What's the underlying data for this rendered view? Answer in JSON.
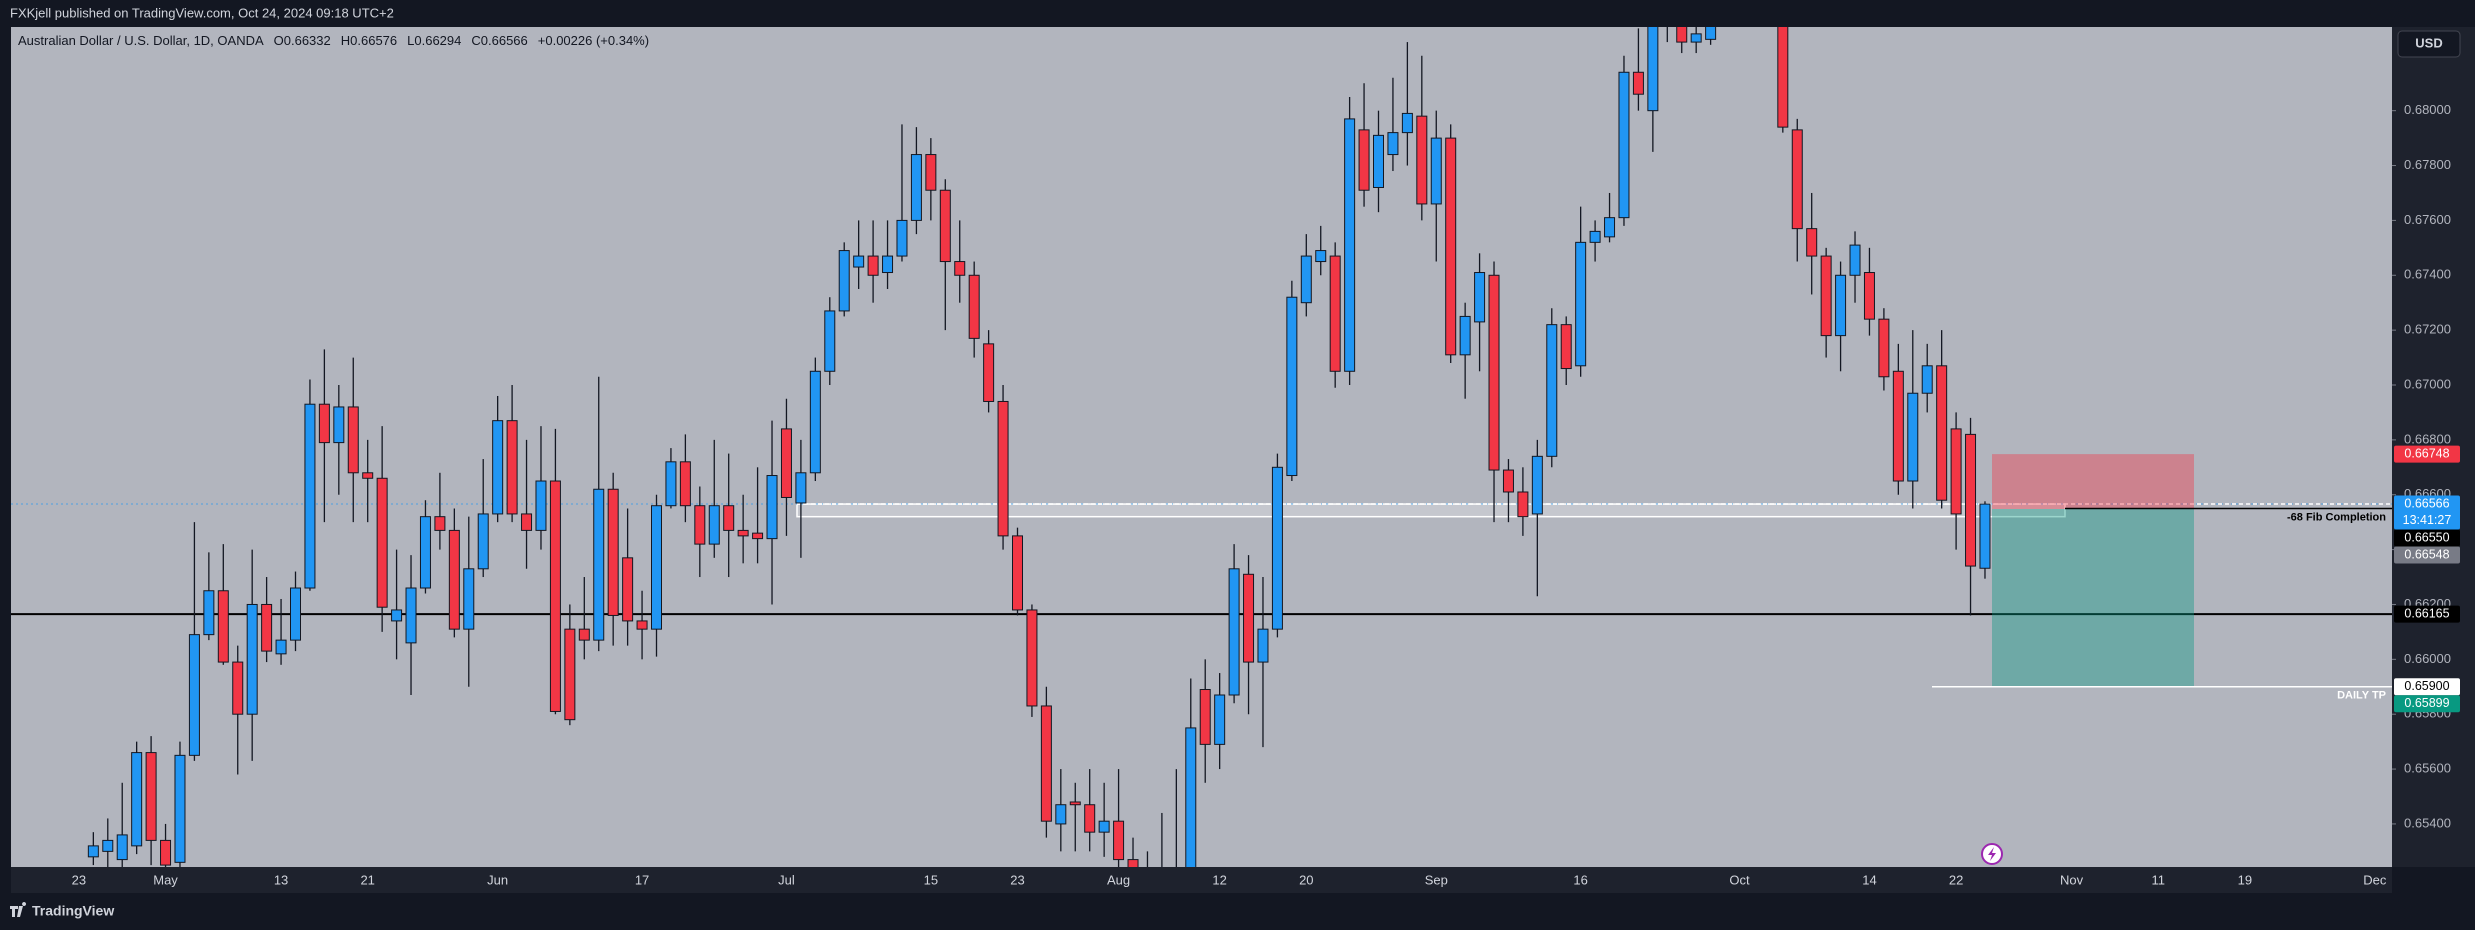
{
  "header": {
    "text": "FXKjell published on TradingView.com, Oct 24, 2024 09:18 UTC+2"
  },
  "footer": {
    "brand": "TradingView"
  },
  "currency_button": "USD",
  "chart_data": {
    "type": "candlestick",
    "legend": {
      "title": "Australian Dollar / U.S. Dollar, 1D, OANDA",
      "items": [
        "O0.66332",
        "H0.66576",
        "L0.66294",
        "C0.66566",
        "+0.00226 (+0.34%)"
      ]
    },
    "up_color": "#2196f3",
    "down_color": "#f23645",
    "ylim": [
      0.65243,
      0.68305
    ],
    "yticks": [
      {
        "value": 0.654,
        "label": "0.65400"
      },
      {
        "value": 0.656,
        "label": "0.65600"
      },
      {
        "value": 0.658,
        "label": "0.65800"
      },
      {
        "value": 0.66,
        "label": "0.66000"
      },
      {
        "value": 0.662,
        "label": "0.66200"
      },
      {
        "value": 0.664,
        "label": "0.66400"
      },
      {
        "value": 0.666,
        "label": "0.66600"
      },
      {
        "value": 0.668,
        "label": "0.66800"
      },
      {
        "value": 0.67,
        "label": "0.67000"
      },
      {
        "value": 0.672,
        "label": "0.67200"
      },
      {
        "value": 0.674,
        "label": "0.67400"
      },
      {
        "value": 0.676,
        "label": "0.67600"
      },
      {
        "value": 0.678,
        "label": "0.67800"
      },
      {
        "value": 0.68,
        "label": "0.68000"
      }
    ],
    "categories": [
      "23",
      null,
      null,
      null,
      null,
      null,
      "May",
      null,
      null,
      null,
      null,
      null,
      null,
      null,
      "13",
      null,
      null,
      null,
      null,
      null,
      "21",
      null,
      null,
      null,
      null,
      null,
      null,
      null,
      null,
      "Jun",
      null,
      null,
      null,
      null,
      null,
      null,
      null,
      null,
      null,
      "17",
      null,
      null,
      null,
      null,
      null,
      null,
      null,
      null,
      null,
      "Jul",
      null,
      null,
      null,
      null,
      null,
      null,
      null,
      null,
      null,
      "15",
      null,
      null,
      null,
      null,
      null,
      "23",
      null,
      null,
      null,
      null,
      null,
      null,
      "Aug",
      null,
      null,
      null,
      null,
      null,
      null,
      "12",
      null,
      null,
      null,
      null,
      null,
      "20",
      null,
      null,
      null,
      null,
      null,
      null,
      null,
      null,
      "Sep",
      null,
      null,
      null,
      null,
      null,
      null,
      null,
      null,
      null,
      "16",
      null,
      null,
      null,
      null,
      null,
      null,
      null,
      null,
      null,
      null,
      "Oct",
      null,
      null,
      null,
      null,
      null,
      null,
      null,
      null,
      "14",
      null,
      null,
      null,
      null,
      null,
      "22",
      null,
      null,
      null,
      null,
      null,
      null,
      null,
      "Nov",
      null,
      null,
      null,
      null,
      null,
      "11",
      null,
      null,
      null,
      null,
      null,
      "19",
      null,
      null,
      null,
      null,
      null,
      null,
      null,
      null,
      "Dec"
    ],
    "open": [
      null,
      0.6528,
      0.653,
      0.6527,
      0.6532,
      0.6566,
      0.6534,
      0.6526,
      0.6565,
      0.6609,
      0.6625,
      0.6599,
      0.658,
      0.662,
      0.6602,
      0.6607,
      0.6626,
      0.6693,
      0.6679,
      0.6692,
      0.6668,
      0.6666,
      0.6614,
      0.6606,
      0.6626,
      0.6652,
      0.6647,
      0.6611,
      0.6633,
      0.6653,
      0.6687,
      0.6653,
      0.6647,
      0.6665,
      0.6611,
      0.6611,
      0.6607,
      0.6662,
      0.6637,
      0.6614,
      0.6611,
      0.6656,
      0.6672,
      0.6656,
      0.6642,
      0.6656,
      0.6647,
      0.6646,
      0.6644,
      0.6684,
      0.6657,
      0.6668,
      0.6705,
      0.6727,
      0.6743,
      0.6747,
      0.6741,
      0.6747,
      0.676,
      0.6784,
      0.6771,
      0.6745,
      0.674,
      0.6715,
      0.6694,
      0.6645,
      0.6618,
      0.6583,
      0.654,
      0.6548,
      0.6547,
      0.6537,
      0.6541,
      0.6527,
      0.652,
      0.6515,
      0.6522,
      0.651,
      0.6589,
      0.6569,
      0.6587,
      0.6631,
      0.6599,
      0.6611,
      0.6667,
      0.673,
      0.6745,
      0.6747,
      0.6705,
      0.6793,
      0.6772,
      0.6784,
      0.6792,
      0.6798,
      0.6766,
      0.679,
      0.6711,
      0.6723,
      0.674,
      0.6669,
      0.6661,
      0.6653,
      0.6674,
      0.6722,
      0.6707,
      0.6752,
      0.6754,
      0.6761,
      0.6814,
      0.68,
      0.6835,
      0.6832,
      0.6825,
      0.6826,
      0.684,
      0.6845,
      0.685,
      0.684,
      0.684,
      0.6793,
      0.6757,
      0.6747,
      0.6718,
      0.674,
      0.6741,
      0.6724,
      0.6705,
      0.6665,
      0.6697,
      0.6707,
      0.6684,
      0.6682,
      0.66332,
      null,
      null,
      null,
      null,
      null,
      null,
      null,
      null,
      null,
      null,
      null,
      null,
      null,
      null,
      null,
      null,
      null,
      null,
      null,
      null,
      null,
      null,
      null,
      null,
      null,
      null,
      null
    ],
    "high": [
      null,
      0.6537,
      0.6542,
      0.6555,
      0.657,
      0.6572,
      0.654,
      0.657,
      0.665,
      0.6639,
      0.6642,
      0.6605,
      0.664,
      0.663,
      0.6622,
      0.6632,
      0.6702,
      0.6713,
      0.67,
      0.671,
      0.668,
      0.6685,
      0.664,
      0.6638,
      0.6658,
      0.6668,
      0.6655,
      0.6652,
      0.6673,
      0.6696,
      0.67,
      0.668,
      0.6685,
      0.6684,
      0.662,
      0.663,
      0.6703,
      0.6668,
      0.6655,
      0.6625,
      0.666,
      0.6677,
      0.6682,
      0.6663,
      0.668,
      0.6675,
      0.666,
      0.667,
      0.6687,
      0.6695,
      0.668,
      0.671,
      0.6732,
      0.6752,
      0.676,
      0.676,
      0.676,
      0.6795,
      0.6794,
      0.679,
      0.6775,
      0.676,
      0.6745,
      0.672,
      0.67,
      0.6648,
      0.662,
      0.659,
      0.656,
      0.6555,
      0.656,
      0.6555,
      0.656,
      0.6535,
      0.653,
      0.6544,
      0.656,
      0.6593,
      0.66,
      0.6595,
      0.6642,
      0.6638,
      0.663,
      0.6675,
      0.6738,
      0.6755,
      0.6758,
      0.6752,
      0.6805,
      0.681,
      0.68,
      0.6812,
      0.6825,
      0.682,
      0.68,
      0.6795,
      0.673,
      0.6748,
      0.6745,
      0.6673,
      0.667,
      0.668,
      0.6728,
      0.6725,
      0.6765,
      0.676,
      0.677,
      0.682,
      0.683,
      0.6845,
      0.685,
      0.684,
      0.684,
      0.6845,
      0.6855,
      0.686,
      0.686,
      0.6855,
      0.6845,
      0.6797,
      0.677,
      0.675,
      0.6745,
      0.6756,
      0.675,
      0.6728,
      0.6715,
      0.672,
      0.6715,
      0.672,
      0.669,
      0.6688,
      0.66576,
      null,
      null,
      null,
      null,
      null,
      null,
      null,
      null,
      null,
      null,
      null,
      null,
      null,
      null,
      null,
      null,
      null,
      null,
      null,
      null,
      null,
      null,
      null,
      null,
      null,
      null,
      null
    ],
    "low": [
      null,
      0.6525,
      0.6522,
      0.6524,
      0.6529,
      0.6525,
      0.652,
      0.652,
      0.6563,
      0.6607,
      0.6598,
      0.6558,
      0.6563,
      0.6599,
      0.6598,
      0.6603,
      0.6625,
      0.665,
      0.666,
      0.665,
      0.665,
      0.661,
      0.66,
      0.6587,
      0.6624,
      0.664,
      0.6608,
      0.659,
      0.663,
      0.665,
      0.665,
      0.6633,
      0.664,
      0.658,
      0.6576,
      0.66,
      0.6603,
      0.6605,
      0.6605,
      0.66,
      0.6601,
      0.6655,
      0.665,
      0.663,
      0.6637,
      0.663,
      0.6635,
      0.6635,
      0.662,
      0.6645,
      0.6637,
      0.6665,
      0.67,
      0.6725,
      0.6735,
      0.673,
      0.6735,
      0.6745,
      0.6755,
      0.676,
      0.672,
      0.673,
      0.671,
      0.669,
      0.664,
      0.6616,
      0.6579,
      0.6535,
      0.653,
      0.653,
      0.653,
      0.6528,
      0.652,
      0.6505,
      0.65,
      0.65,
      0.6505,
      0.6505,
      0.6555,
      0.656,
      0.6584,
      0.658,
      0.6568,
      0.6608,
      0.6665,
      0.6725,
      0.674,
      0.6699,
      0.67,
      0.6765,
      0.6763,
      0.6778,
      0.678,
      0.676,
      0.6745,
      0.6708,
      0.6695,
      0.6705,
      0.665,
      0.665,
      0.6645,
      0.6623,
      0.667,
      0.67,
      0.6703,
      0.6745,
      0.6752,
      0.6758,
      0.68,
      0.6785,
      0.6825,
      0.6821,
      0.6821,
      0.6824,
      0.6835,
      0.6838,
      0.6835,
      0.6832,
      0.6792,
      0.6745,
      0.6733,
      0.671,
      0.6705,
      0.673,
      0.6718,
      0.6698,
      0.666,
      0.6655,
      0.669,
      0.6655,
      0.664,
      0.6616,
      0.66294,
      null,
      null,
      null,
      null,
      null,
      null,
      null,
      null,
      null,
      null,
      null,
      null,
      null,
      null,
      null,
      null,
      null,
      null,
      null,
      null,
      null,
      null,
      null,
      null,
      null,
      null,
      null
    ],
    "close": [
      null,
      0.6532,
      0.6534,
      0.6536,
      0.6566,
      0.6534,
      0.6525,
      0.6565,
      0.6609,
      0.6625,
      0.6599,
      0.658,
      0.662,
      0.6603,
      0.6607,
      0.6626,
      0.6693,
      0.6679,
      0.6692,
      0.6668,
      0.6666,
      0.6619,
      0.6618,
      0.6626,
      0.6652,
      0.6647,
      0.6611,
      0.6633,
      0.6653,
      0.6687,
      0.6653,
      0.6647,
      0.6665,
      0.6581,
      0.6578,
      0.6607,
      0.6662,
      0.6616,
      0.6614,
      0.6611,
      0.6656,
      0.6672,
      0.6656,
      0.6642,
      0.6656,
      0.6647,
      0.6645,
      0.6644,
      0.6667,
      0.6659,
      0.6668,
      0.6705,
      0.6727,
      0.6749,
      0.6747,
      0.674,
      0.6747,
      0.676,
      0.6784,
      0.6771,
      0.6745,
      0.674,
      0.6717,
      0.6694,
      0.6645,
      0.6618,
      0.6583,
      0.6541,
      0.6547,
      0.6547,
      0.6537,
      0.6541,
      0.6527,
      0.652,
      0.6515,
      0.6522,
      0.6518,
      0.6575,
      0.6569,
      0.6587,
      0.6633,
      0.6599,
      0.6611,
      0.667,
      0.6732,
      0.6747,
      0.6749,
      0.6705,
      0.6797,
      0.6771,
      0.6791,
      0.6792,
      0.6799,
      0.6766,
      0.679,
      0.6711,
      0.6725,
      0.6741,
      0.6669,
      0.6661,
      0.6652,
      0.6674,
      0.6722,
      0.6706,
      0.6752,
      0.6756,
      0.6761,
      0.6814,
      0.6806,
      0.6835,
      0.6842,
      0.6825,
      0.6828,
      0.6835,
      0.6845,
      0.685,
      0.684,
      0.6843,
      0.6794,
      0.6757,
      0.6747,
      0.6718,
      0.674,
      0.6751,
      0.6724,
      0.6703,
      0.6665,
      0.6697,
      0.6707,
      0.6658,
      0.6653,
      0.6634,
      0.66566,
      null,
      null,
      null,
      null,
      null,
      null,
      null,
      null,
      null,
      null,
      null,
      null,
      null,
      null,
      null,
      null,
      null,
      null,
      null,
      null,
      null,
      null,
      null,
      null,
      null,
      null,
      null
    ],
    "horizontal_line": {
      "value": 0.66165,
      "color": "#000000"
    },
    "zone": {
      "from": 0.6652,
      "to": 0.66566
    },
    "position": {
      "stop": 0.66748,
      "entry": 0.66548,
      "target": 0.65899
    },
    "annotations": [
      {
        "text": "-68 Fib Completion",
        "value": 0.6655,
        "color": "#000000"
      },
      {
        "text": "DAILY TP",
        "value": 0.659,
        "color": "#ffffff"
      }
    ],
    "price_labels": [
      {
        "value": 0.66748,
        "bg": "#f23645",
        "fg": "#ffffff"
      },
      {
        "value": 0.66566,
        "bg": "#2196f3",
        "fg": "#ffffff",
        "countdown": "13:41:27"
      },
      {
        "value": {
          "value": 0.6655,
          "label": "0.66550"
        },
        "bg": "#000000",
        "fg": "#ffffff"
      },
      {
        "value": 0.66548,
        "bg": "#787b86",
        "fg": "#ffffff"
      },
      {
        "value": 0.66165,
        "bg": "#000000",
        "fg": "#ffffff"
      },
      {
        "value": {
          "value": 0.659,
          "label": "0.65900"
        },
        "bg": "#ffffff",
        "fg": "#000000"
      },
      {
        "value": 0.65899,
        "bg": "#089981",
        "fg": "#ffffff"
      }
    ]
  }
}
